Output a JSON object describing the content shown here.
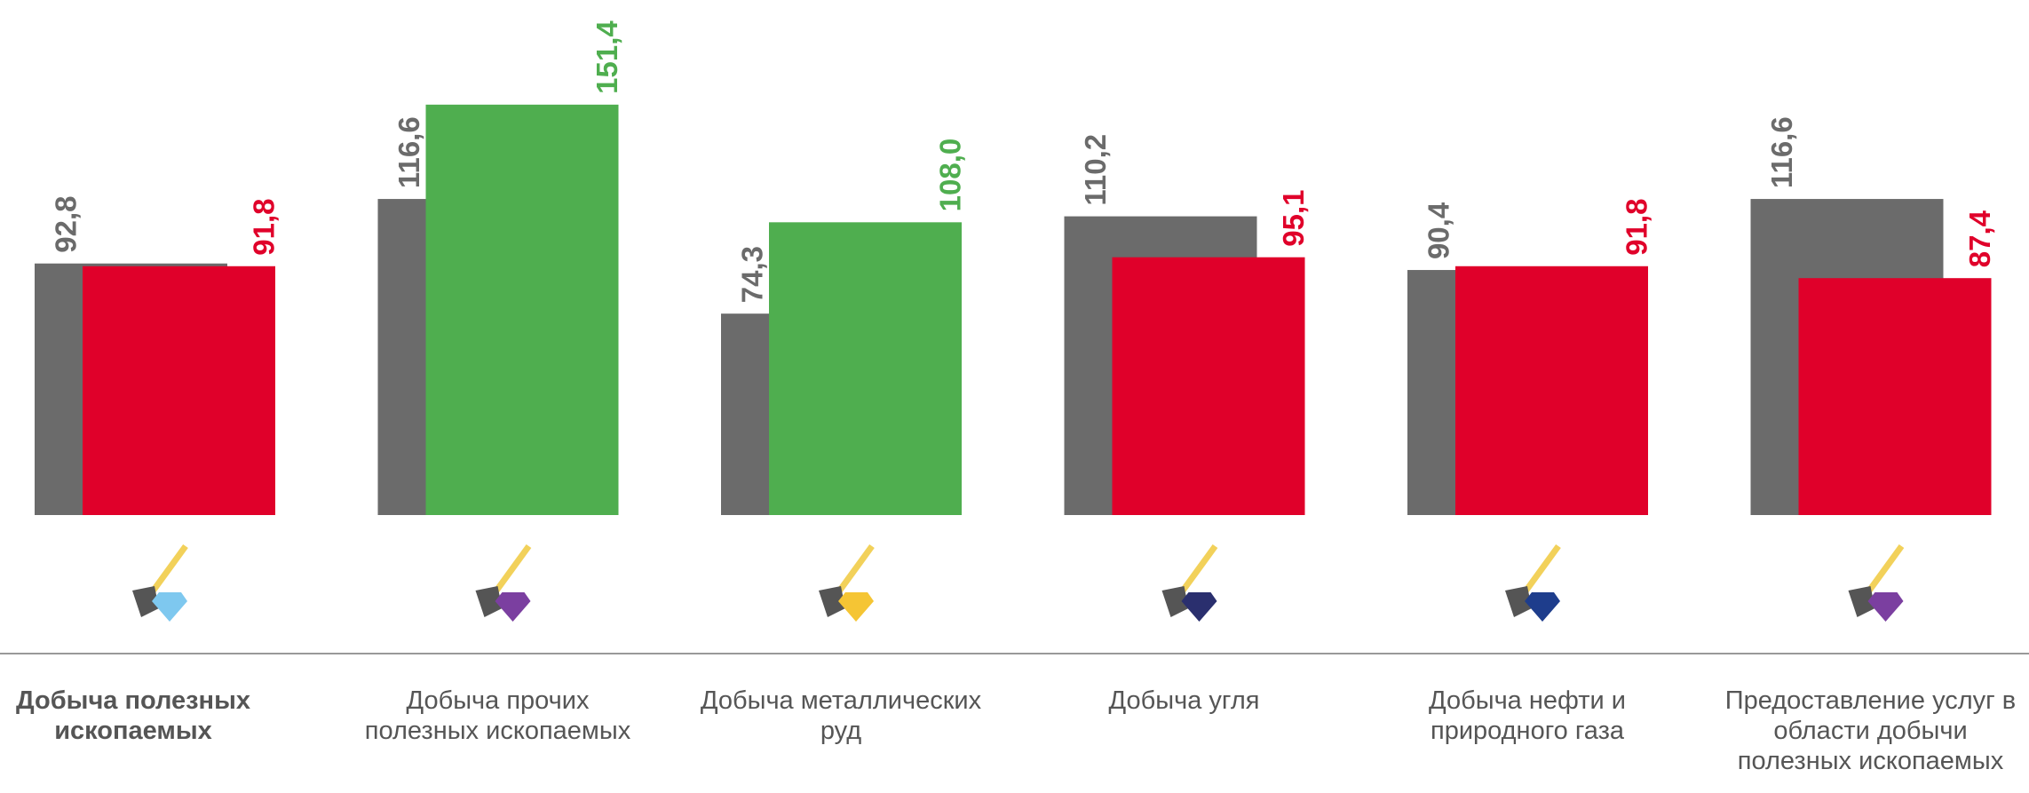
{
  "chart_data": {
    "type": "bar",
    "categories": [
      "Добыча полезных ископаемых",
      "Добыча прочих полезных ископаемых",
      "Добыча металлических руд",
      "Добыча угля",
      "Добыча нефти и природного газа",
      "Предоставление услуг в области добычи полезных ископаемых"
    ],
    "series": [
      {
        "color": "#6b6b6b",
        "values": [
          92.8,
          116.6,
          74.3,
          110.2,
          90.4,
          116.6
        ],
        "value_labels": [
          "92,8",
          "116,6",
          "74,3",
          "110,2",
          "90,4",
          "116,6"
        ]
      },
      {
        "colors": [
          "#e0002a",
          "#4fae4f",
          "#4fae4f",
          "#e0002a",
          "#e0002a",
          "#e0002a"
        ],
        "values": [
          91.8,
          151.4,
          108.0,
          95.1,
          91.8,
          87.4
        ],
        "value_labels": [
          "91,8",
          "151,4",
          "108,0",
          "95,1",
          "91,8",
          "87,4"
        ]
      }
    ],
    "ylim": [
      0,
      190
    ]
  }
}
